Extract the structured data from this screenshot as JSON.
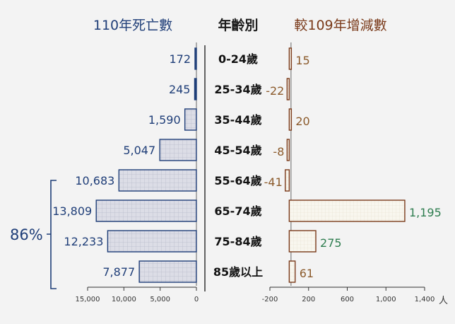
{
  "chart_data": [
    {
      "type": "bar",
      "title": "110年死亡數",
      "categories": [
        "0-24歲",
        "25-34歲",
        "35-44歲",
        "45-54歲",
        "55-64歲",
        "65-74歲",
        "75-84歲",
        "85歲以上"
      ],
      "values": [
        172,
        245,
        1590,
        5047,
        10683,
        13809,
        12233,
        7877
      ],
      "value_labels": [
        "172",
        "245",
        "1,590",
        "5,047",
        "10,683",
        "13,809",
        "12,233",
        "7,877"
      ],
      "xlim": [
        15000,
        0
      ],
      "ticks": [
        15000,
        10000,
        5000,
        0
      ],
      "tick_labels": [
        "15,000",
        "10,000",
        "5,000",
        "0"
      ],
      "bracket_label": "86%",
      "bracket_range": [
        "55-64歲",
        "85歲以上"
      ],
      "color": "#1f3e78"
    },
    {
      "type": "bar",
      "title": "較109年增減數",
      "categories": [
        "0-24歲",
        "25-34歲",
        "35-44歲",
        "45-54歲",
        "55-64歲",
        "65-74歲",
        "75-84歲",
        "85歲以上"
      ],
      "values": [
        15,
        -22,
        20,
        -8,
        -41,
        1195,
        275,
        61
      ],
      "value_labels": [
        "15",
        "-22",
        "20",
        "-8",
        "-41",
        "1,195",
        "275",
        "61"
      ],
      "label_colors": [
        "#8b5a2b",
        "#8b5a2b",
        "#8b5a2b",
        "#8b5a2b",
        "#8b5a2b",
        "#2e7d4f",
        "#2e7d4f",
        "#8b5a2b"
      ],
      "xlim": [
        -200,
        1400
      ],
      "ticks": [
        -200,
        200,
        600,
        1000,
        1400
      ],
      "tick_labels": [
        "-200",
        "200",
        "600",
        "1,000",
        "1,400"
      ],
      "unit": "人",
      "color": "#7a3a1a"
    }
  ],
  "center_title": "年齡別"
}
